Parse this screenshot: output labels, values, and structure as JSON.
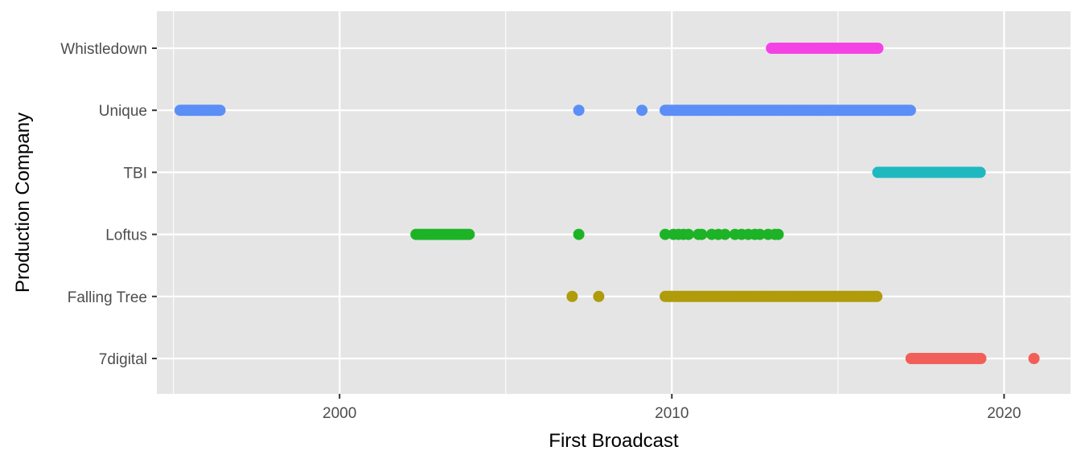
{
  "chart_data": {
    "type": "scatter",
    "title": "",
    "xlabel": "First Broadcast",
    "ylabel": "Production Company",
    "xlim": [
      1994.5,
      2022.0
    ],
    "x_ticks": [
      {
        "value": 2000,
        "label": "2000"
      },
      {
        "value": 2010,
        "label": "2010"
      },
      {
        "value": 2020,
        "label": "2020"
      }
    ],
    "x_minor_ticks": [
      1995,
      2005,
      2015
    ],
    "categories": [
      "7digital",
      "Falling Tree",
      "Loftus",
      "TBI",
      "Unique",
      "Whistledown"
    ],
    "grid": true,
    "legend": "none",
    "panel_background": "#e5e5e5",
    "gridline_color": "#ffffff",
    "series": [
      {
        "category": "Whistledown",
        "color": "#f442e4",
        "ranges": [
          [
            2013.0,
            2016.2,
            0.08
          ]
        ],
        "points": []
      },
      {
        "category": "Unique",
        "color": "#5b8ef7",
        "ranges": [
          [
            1995.2,
            1996.4,
            0.05
          ],
          [
            2009.8,
            2017.2,
            0.06
          ]
        ],
        "points": [
          2007.2,
          2009.1
        ]
      },
      {
        "category": "TBI",
        "color": "#1fb8bf",
        "ranges": [
          [
            2016.2,
            2019.3,
            0.07
          ]
        ],
        "points": []
      },
      {
        "category": "Loftus",
        "color": "#1db326",
        "ranges": [
          [
            2002.3,
            2003.95,
            0.08
          ]
        ],
        "points": [
          2007.2,
          2009.8,
          2010.05,
          2010.2,
          2010.35,
          2010.5,
          2010.8,
          2010.9,
          2011.2,
          2011.4,
          2011.6,
          2011.9,
          2012.1,
          2012.3,
          2012.5,
          2012.65,
          2012.9,
          2013.1,
          2013.2
        ]
      },
      {
        "category": "Falling Tree",
        "color": "#b09b0a",
        "ranges": [
          [
            2009.8,
            2016.2,
            0.07
          ]
        ],
        "points": [
          2007.0,
          2007.8
        ]
      },
      {
        "category": "7digital",
        "color": "#f25f58",
        "ranges": [
          [
            2017.2,
            2019.3,
            0.06
          ]
        ],
        "points": [
          2020.9
        ]
      }
    ]
  }
}
